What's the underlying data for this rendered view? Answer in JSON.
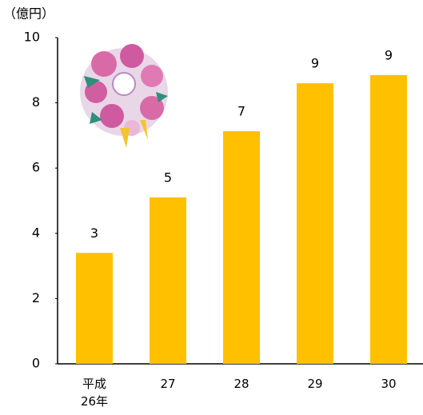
{
  "chart_data": {
    "type": "bar",
    "y_label": "（億円）",
    "categories": [
      "平成\n26年",
      "27",
      "28",
      "29",
      "30"
    ],
    "values": [
      3.4,
      5.1,
      7.13,
      8.6,
      8.85
    ],
    "value_labels": [
      "3",
      "5",
      "7",
      "9",
      "9"
    ],
    "color": "#ffc000",
    "ylim": [
      0,
      10
    ],
    "yticks": [
      0,
      2,
      4,
      6,
      8,
      10
    ],
    "grid": false
  }
}
